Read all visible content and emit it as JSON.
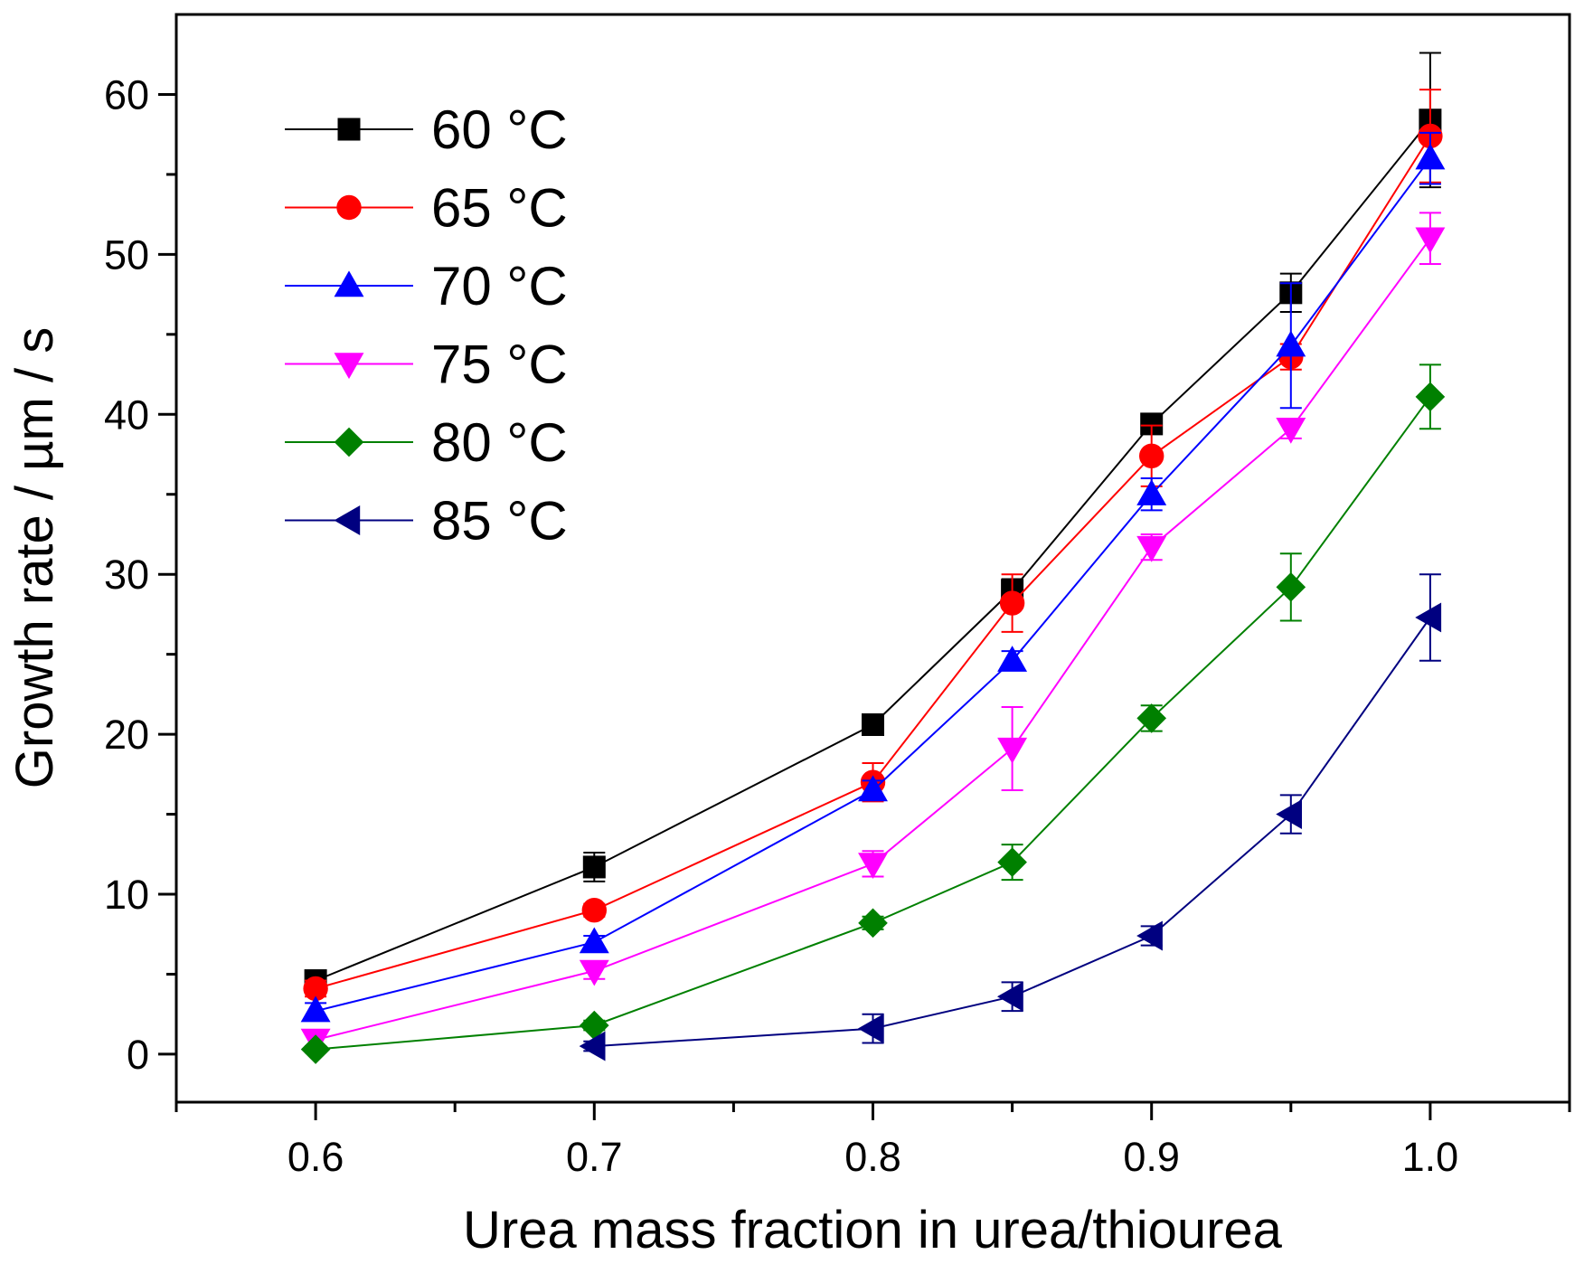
{
  "chart_data": {
    "type": "line",
    "title": "",
    "xlabel": "Urea mass fraction in urea/thiourea",
    "ylabel": "Growth rate / µm / s",
    "xlim": [
      0.55,
      1.05
    ],
    "ylim": [
      -3,
      65
    ],
    "x_ticks": [
      0.6,
      0.7,
      0.8,
      0.9,
      1.0
    ],
    "x_tick_labels": [
      "0.6",
      "0.7",
      "0.8",
      "0.9",
      "1.0"
    ],
    "y_ticks": [
      0,
      10,
      20,
      30,
      40,
      50,
      60
    ],
    "y_tick_labels": [
      "0",
      "10",
      "20",
      "30",
      "40",
      "50",
      "60"
    ],
    "grid": false,
    "legend_position": "top-left",
    "series": [
      {
        "name": "60 °C",
        "color": "#000000",
        "marker": "square",
        "points": [
          {
            "x": 0.6,
            "y": 4.6,
            "err": 0.6
          },
          {
            "x": 0.7,
            "y": 11.7,
            "err": 0.9
          },
          {
            "x": 0.8,
            "y": 20.6,
            "err": 0.6
          },
          {
            "x": 0.85,
            "y": 29.0,
            "err": 0.7
          },
          {
            "x": 0.9,
            "y": 39.4,
            "err": 0.6
          },
          {
            "x": 0.95,
            "y": 47.6,
            "err": 1.2
          },
          {
            "x": 1.0,
            "y": 58.4,
            "err": 4.2
          }
        ]
      },
      {
        "name": "65 °C",
        "color": "#ff0000",
        "marker": "circle",
        "points": [
          {
            "x": 0.6,
            "y": 4.1,
            "err": 0.5
          },
          {
            "x": 0.7,
            "y": 9.0,
            "err": 0.4
          },
          {
            "x": 0.8,
            "y": 17.0,
            "err": 1.2
          },
          {
            "x": 0.85,
            "y": 28.2,
            "err": 1.8
          },
          {
            "x": 0.9,
            "y": 37.4,
            "err": 1.9
          },
          {
            "x": 0.95,
            "y": 43.6,
            "err": 0.8
          },
          {
            "x": 1.0,
            "y": 57.4,
            "err": 2.9
          }
        ]
      },
      {
        "name": "70 °C",
        "color": "#0000ff",
        "marker": "triangle-up",
        "points": [
          {
            "x": 0.6,
            "y": 2.7,
            "err": 0.5
          },
          {
            "x": 0.7,
            "y": 7.0,
            "err": 0.4
          },
          {
            "x": 0.8,
            "y": 16.5,
            "err": 0.6
          },
          {
            "x": 0.85,
            "y": 24.6,
            "err": 0.6
          },
          {
            "x": 0.9,
            "y": 35.0,
            "err": 1.0
          },
          {
            "x": 0.95,
            "y": 44.3,
            "err": 3.9
          },
          {
            "x": 1.0,
            "y": 56.0,
            "err": 1.6
          }
        ]
      },
      {
        "name": "75 °C",
        "color": "#ff00ff",
        "marker": "triangle-down",
        "points": [
          {
            "x": 0.6,
            "y": 0.9,
            "err": 0.4
          },
          {
            "x": 0.7,
            "y": 5.2,
            "err": 0.5
          },
          {
            "x": 0.8,
            "y": 11.9,
            "err": 0.8
          },
          {
            "x": 0.85,
            "y": 19.1,
            "err": 2.6
          },
          {
            "x": 0.9,
            "y": 31.7,
            "err": 0.8
          },
          {
            "x": 0.95,
            "y": 39.1,
            "err": 0.6
          },
          {
            "x": 1.0,
            "y": 51.0,
            "err": 1.6
          }
        ]
      },
      {
        "name": "80 °C",
        "color": "#008000",
        "marker": "diamond",
        "points": [
          {
            "x": 0.6,
            "y": 0.3,
            "err": 0.2
          },
          {
            "x": 0.7,
            "y": 1.8,
            "err": 0.3
          },
          {
            "x": 0.8,
            "y": 8.2,
            "err": 0.4
          },
          {
            "x": 0.85,
            "y": 12.0,
            "err": 1.1
          },
          {
            "x": 0.9,
            "y": 21.0,
            "err": 0.8
          },
          {
            "x": 0.95,
            "y": 29.2,
            "err": 2.1
          },
          {
            "x": 1.0,
            "y": 41.1,
            "err": 2.0
          }
        ]
      },
      {
        "name": "85 °C",
        "color": "#000080",
        "marker": "triangle-left",
        "points": [
          {
            "x": 0.7,
            "y": 0.5,
            "err": 0.3
          },
          {
            "x": 0.8,
            "y": 1.6,
            "err": 0.9
          },
          {
            "x": 0.85,
            "y": 3.6,
            "err": 0.9
          },
          {
            "x": 0.9,
            "y": 7.4,
            "err": 0.6
          },
          {
            "x": 0.95,
            "y": 15.0,
            "err": 1.2
          },
          {
            "x": 1.0,
            "y": 27.3,
            "err": 2.7
          }
        ]
      }
    ]
  }
}
